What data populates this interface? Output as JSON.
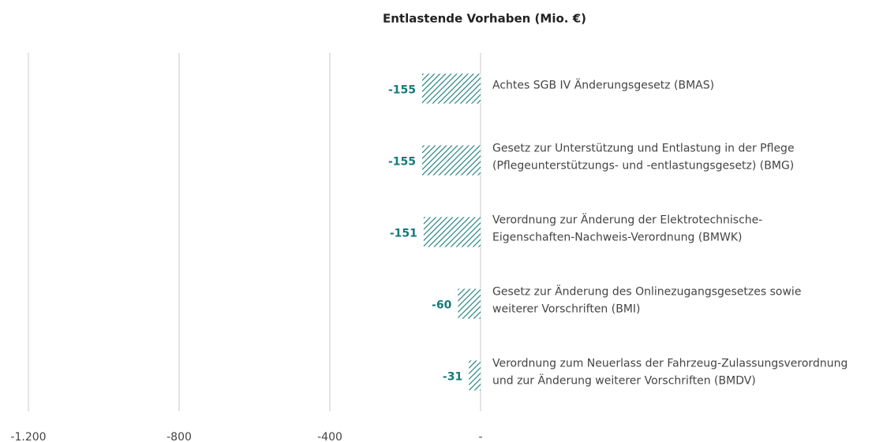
{
  "chart_data": {
    "type": "bar",
    "orientation": "horizontal",
    "title": "Entlastende Vorhaben (Mio. €)",
    "categories": [
      [
        "Achtes SGB IV Änderungsgesetz (BMAS)"
      ],
      [
        "Gesetz zur Unterstützung und Entlastung in der Pflege",
        "(Pflegeunterstützungs- und -entlastungsgesetz) (BMG)"
      ],
      [
        "Verordnung zur Änderung der Elektrotechnische-",
        "Eigenschaften-Nachweis-Verordnung (BMWK)"
      ],
      [
        "Gesetz zur Änderung des Onlinezugangsgesetzes sowie",
        "weiterer Vorschriften (BMI)"
      ],
      [
        "Verordnung zum Neuerlass der Fahrzeug-Zulassungsverordnung",
        "und zur Änderung weiterer Vorschriften (BMDV)"
      ]
    ],
    "values": [
      -155,
      -155,
      -151,
      -60,
      -31
    ],
    "color": "#157a7a",
    "xlim": [
      -1200,
      0
    ],
    "xticks": [
      {
        "value": -1200,
        "label": "-1.200"
      },
      -800,
      -400,
      {
        "value": 0,
        "label": "-"
      }
    ],
    "grid": true
  }
}
